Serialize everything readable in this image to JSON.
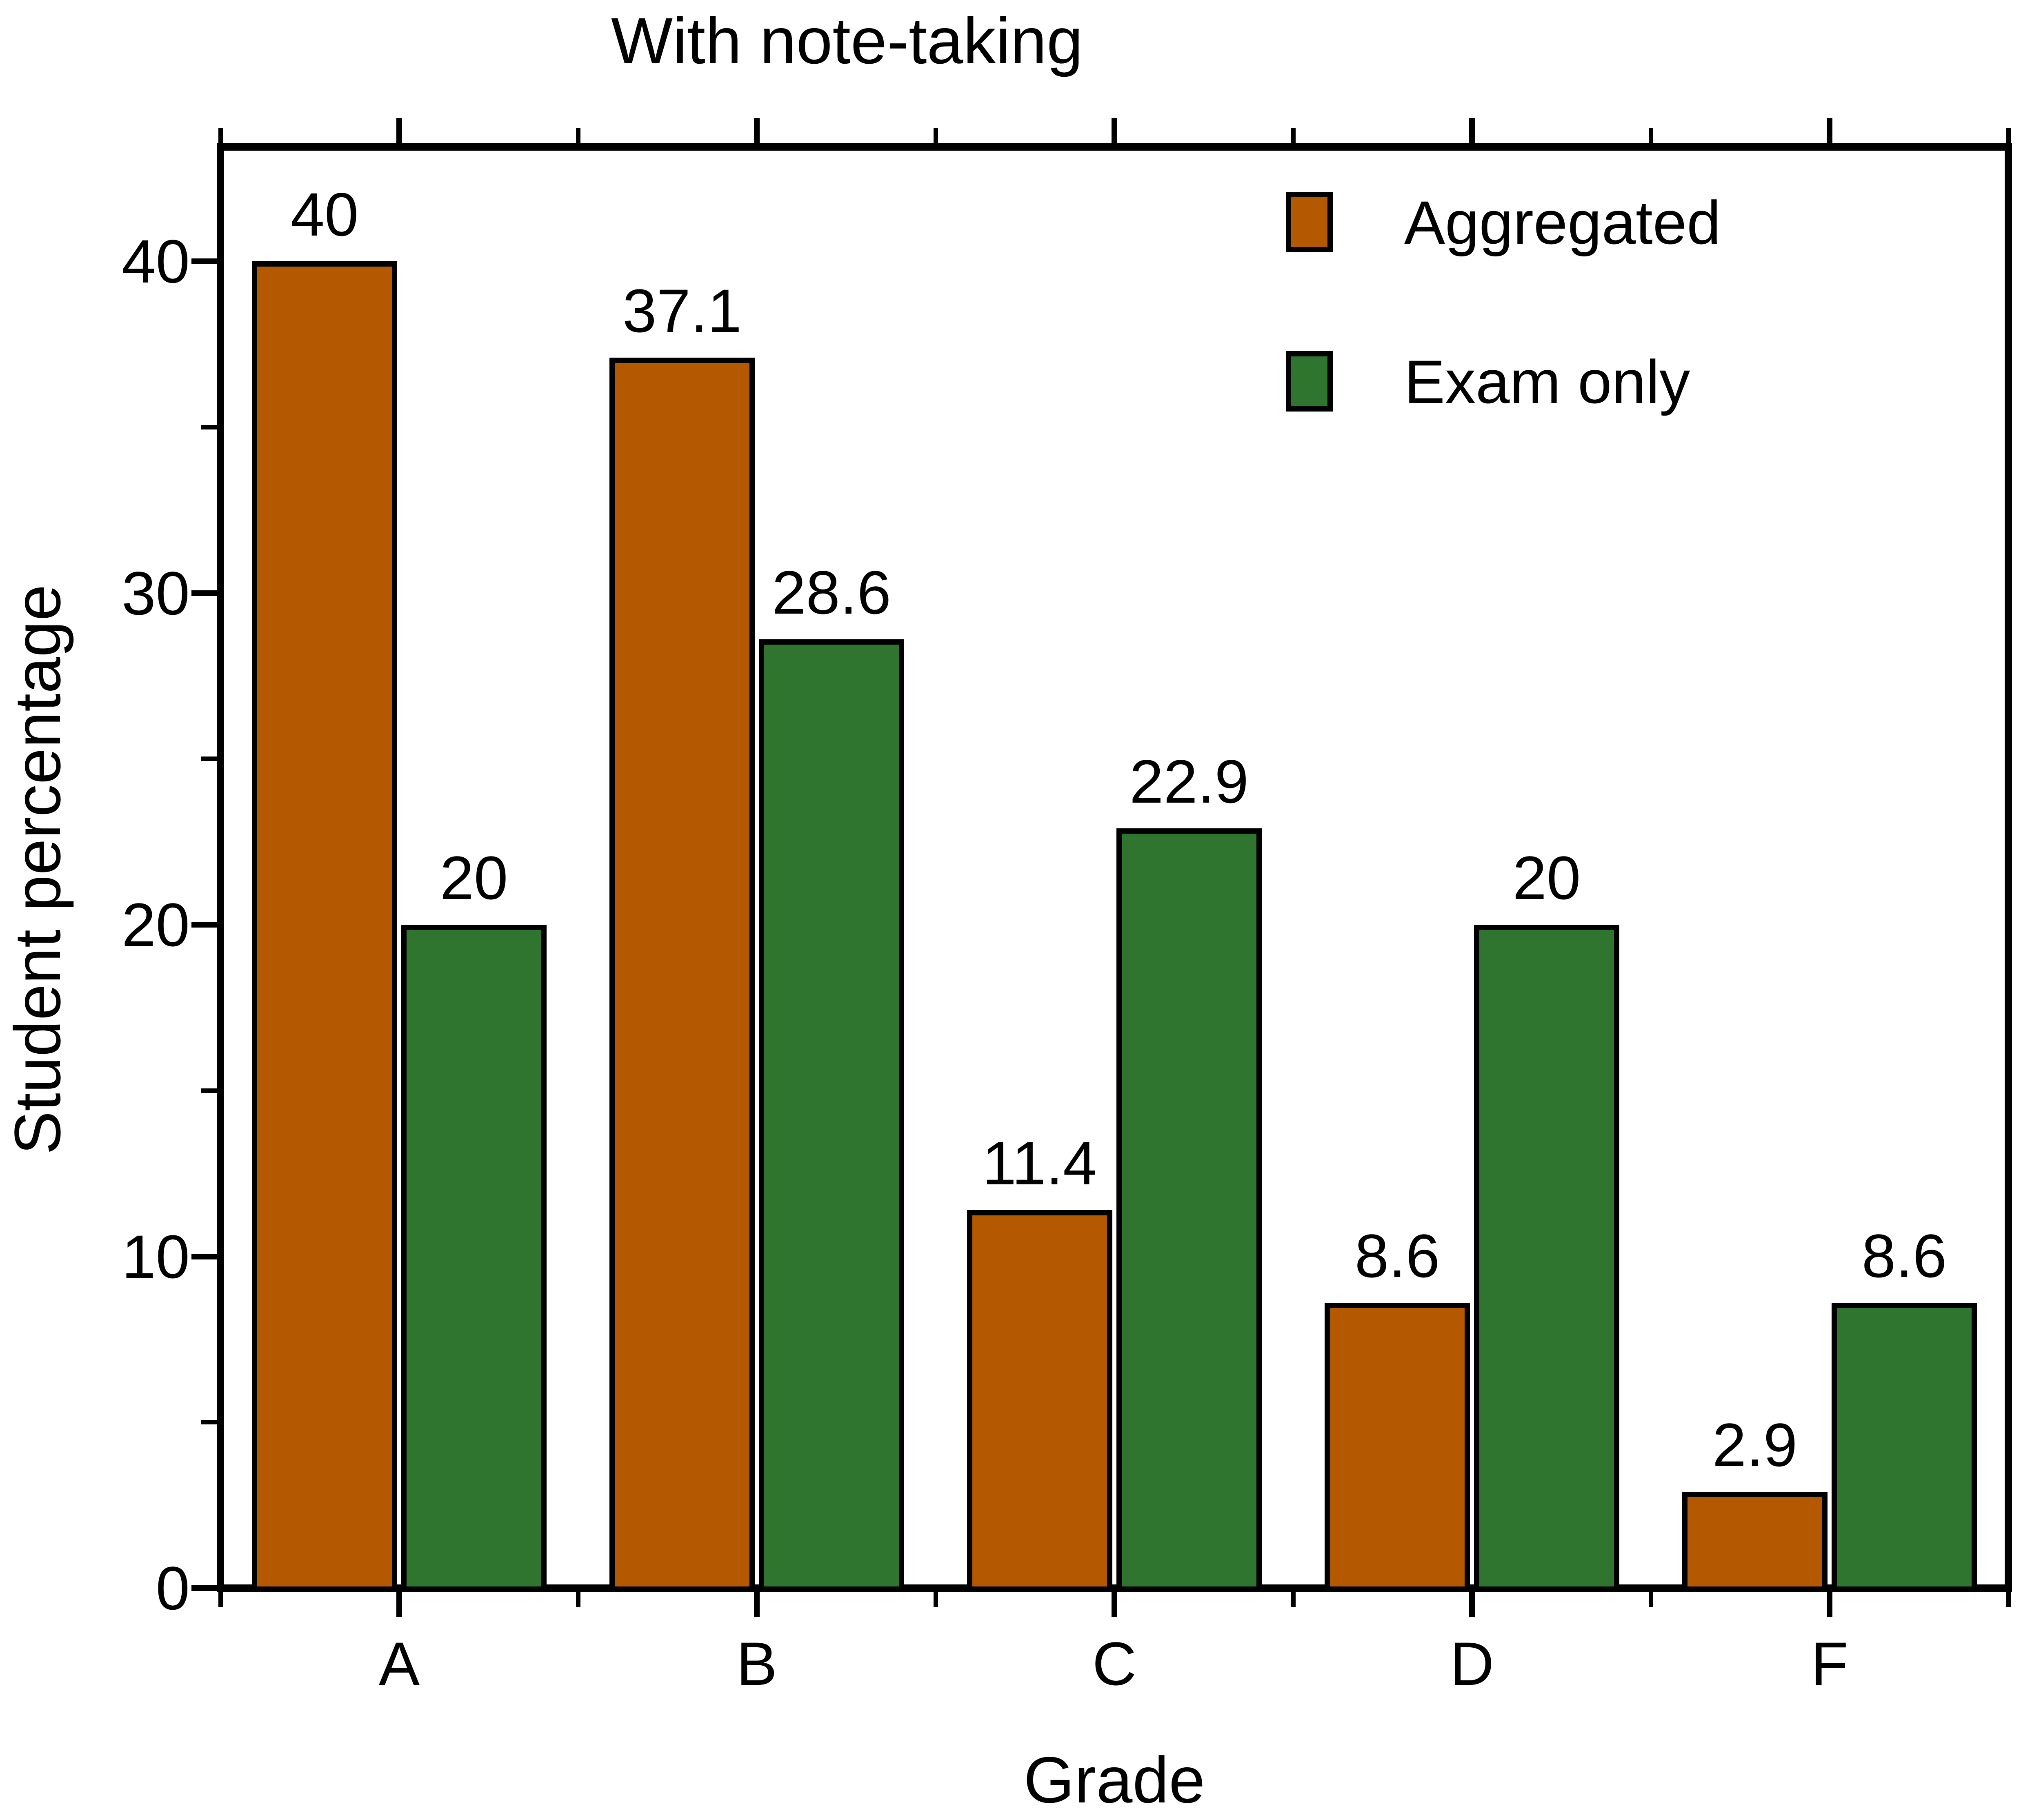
{
  "chart_data": {
    "type": "bar",
    "title": "With note-taking",
    "xlabel": "Grade",
    "ylabel": "Student percentage",
    "categories": [
      "A",
      "B",
      "C",
      "D",
      "F"
    ],
    "series": [
      {
        "name": "Aggregated",
        "color": "#B45802",
        "values": [
          40,
          37.1,
          11.4,
          8.6,
          2.9
        ],
        "labels": [
          "40",
          "37.1",
          "11.4",
          "8.6",
          "2.9"
        ]
      },
      {
        "name": "Exam only",
        "color": "#2F7530",
        "values": [
          20,
          28.6,
          22.9,
          20,
          8.6
        ],
        "labels": [
          "20",
          "28.6",
          "22.9",
          "20",
          "8.6"
        ]
      }
    ],
    "ylim": [
      0,
      43.5
    ],
    "yticks_major": [
      0,
      10,
      20,
      30,
      40
    ],
    "yticks_minor": [
      5,
      15,
      25,
      35
    ],
    "bar_value_labels": true,
    "legend_position": "upper-right-inside",
    "grid": false,
    "axis_color": "#000000",
    "background_color": "#FFFFFF"
  }
}
